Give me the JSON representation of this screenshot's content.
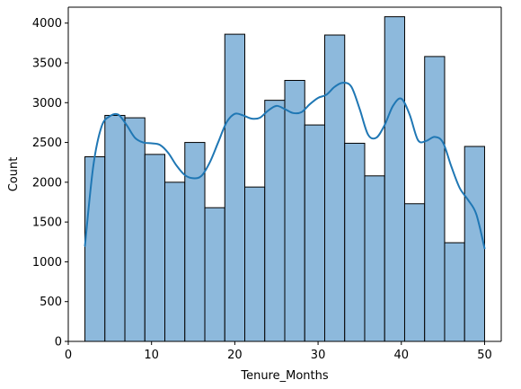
{
  "chart_data": {
    "type": "bar",
    "subtype": "histogram",
    "title": "",
    "xlabel": "Tenure_Months",
    "ylabel": "Count",
    "xlim": [
      0,
      52
    ],
    "ylim": [
      0,
      4200
    ],
    "x_ticks": [
      0,
      10,
      20,
      30,
      40,
      50
    ],
    "y_ticks": [
      0,
      500,
      1000,
      1500,
      2000,
      2500,
      3000,
      3500,
      4000
    ],
    "grid": false,
    "bins": [
      {
        "x0": 2.0,
        "x1": 4.4,
        "count": 2320
      },
      {
        "x0": 4.4,
        "x1": 6.8,
        "count": 2840
      },
      {
        "x0": 6.8,
        "x1": 9.2,
        "count": 2810
      },
      {
        "x0": 9.2,
        "x1": 11.6,
        "count": 2350
      },
      {
        "x0": 11.6,
        "x1": 14.0,
        "count": 2000
      },
      {
        "x0": 14.0,
        "x1": 16.4,
        "count": 2500
      },
      {
        "x0": 16.4,
        "x1": 18.8,
        "count": 1680
      },
      {
        "x0": 18.8,
        "x1": 21.2,
        "count": 3860
      },
      {
        "x0": 21.2,
        "x1": 23.6,
        "count": 1940
      },
      {
        "x0": 23.6,
        "x1": 26.0,
        "count": 3030
      },
      {
        "x0": 26.0,
        "x1": 28.4,
        "count": 3280
      },
      {
        "x0": 28.4,
        "x1": 30.8,
        "count": 2720
      },
      {
        "x0": 30.8,
        "x1": 33.2,
        "count": 3850
      },
      {
        "x0": 33.2,
        "x1": 35.6,
        "count": 2490
      },
      {
        "x0": 35.6,
        "x1": 38.0,
        "count": 2080
      },
      {
        "x0": 38.0,
        "x1": 40.4,
        "count": 4080
      },
      {
        "x0": 40.4,
        "x1": 42.8,
        "count": 1730
      },
      {
        "x0": 42.8,
        "x1": 45.2,
        "count": 3580
      },
      {
        "x0": 45.2,
        "x1": 47.6,
        "count": 1240
      },
      {
        "x0": 47.6,
        "x1": 50.0,
        "count": 2450
      }
    ],
    "kde": {
      "x": [
        2.0,
        3.0,
        4.0,
        5.0,
        6.0,
        7.0,
        8.0,
        9.0,
        10.0,
        11.0,
        12.0,
        13.0,
        14.0,
        15.0,
        16.0,
        17.0,
        18.0,
        19.0,
        20.0,
        21.0,
        22.0,
        23.0,
        24.0,
        25.0,
        26.0,
        27.0,
        28.0,
        29.0,
        30.0,
        31.0,
        32.0,
        33.0,
        34.0,
        35.0,
        36.0,
        37.0,
        38.0,
        39.0,
        40.0,
        41.0,
        42.0,
        43.0,
        44.0,
        45.0,
        46.0,
        47.0,
        48.0,
        49.0,
        50.0
      ],
      "y": [
        1200,
        2200,
        2700,
        2830,
        2850,
        2720,
        2560,
        2500,
        2490,
        2470,
        2370,
        2210,
        2090,
        2050,
        2080,
        2250,
        2500,
        2750,
        2860,
        2840,
        2800,
        2810,
        2900,
        2960,
        2920,
        2870,
        2880,
        2980,
        3060,
        3100,
        3200,
        3250,
        3200,
        2920,
        2600,
        2560,
        2720,
        2960,
        3050,
        2850,
        2530,
        2520,
        2570,
        2500,
        2200,
        1930,
        1780,
        1600,
        1170
      ]
    },
    "colors": {
      "bar_fill": "#8db9dc",
      "bar_edge": "#000000",
      "kde_line": "#1f77b4"
    }
  }
}
